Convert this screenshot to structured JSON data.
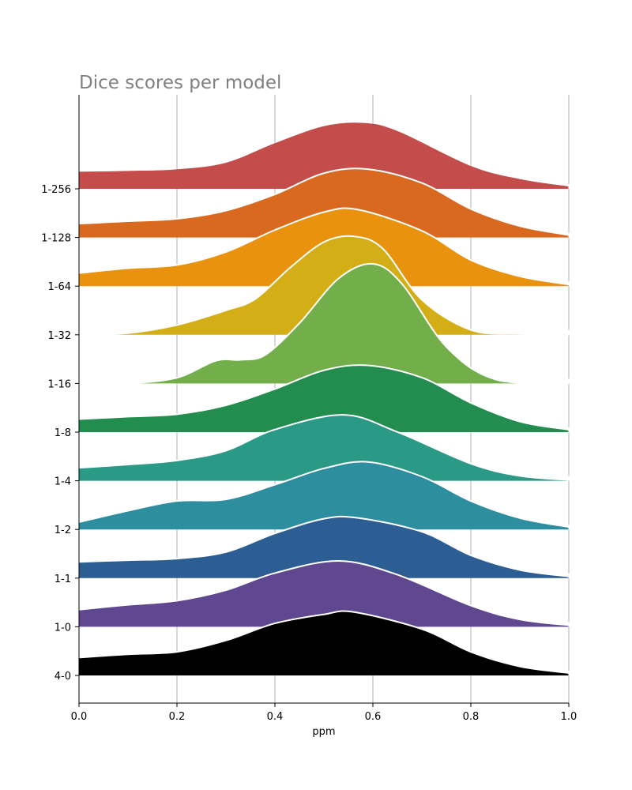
{
  "chart_data": {
    "type": "ridgeline",
    "title": "Dice scores per model",
    "xlabel": "ppm",
    "ylabel": "",
    "xlim": [
      0,
      1
    ],
    "x_ticks": [
      "0.0",
      "0.2",
      "0.4",
      "0.6",
      "0.8",
      "1.0"
    ],
    "x_tick_values": [
      0,
      0.2,
      0.4,
      0.6,
      0.8,
      1.0
    ],
    "grid": "vertical",
    "series": [
      {
        "name": "1-256",
        "color": "#c44c4b",
        "curve": [
          [
            0,
            0.2
          ],
          [
            0.1,
            0.21
          ],
          [
            0.2,
            0.23
          ],
          [
            0.3,
            0.31
          ],
          [
            0.4,
            0.55
          ],
          [
            0.5,
            0.76
          ],
          [
            0.58,
            0.8
          ],
          [
            0.65,
            0.7
          ],
          [
            0.8,
            0.27
          ],
          [
            0.9,
            0.11
          ],
          [
            1.0,
            0.02
          ]
        ]
      },
      {
        "name": "1-128",
        "color": "#d9691e",
        "curve": [
          [
            0,
            0.17
          ],
          [
            0.1,
            0.2
          ],
          [
            0.2,
            0.23
          ],
          [
            0.3,
            0.33
          ],
          [
            0.4,
            0.53
          ],
          [
            0.5,
            0.79
          ],
          [
            0.59,
            0.84
          ],
          [
            0.7,
            0.67
          ],
          [
            0.8,
            0.35
          ],
          [
            0.9,
            0.14
          ],
          [
            1.0,
            0.03
          ]
        ]
      },
      {
        "name": "1-64",
        "color": "#e8920e",
        "curve": [
          [
            0,
            0.16
          ],
          [
            0.1,
            0.22
          ],
          [
            0.2,
            0.26
          ],
          [
            0.3,
            0.42
          ],
          [
            0.4,
            0.69
          ],
          [
            0.5,
            0.91
          ],
          [
            0.57,
            0.94
          ],
          [
            0.7,
            0.68
          ],
          [
            0.8,
            0.32
          ],
          [
            0.9,
            0.12
          ],
          [
            1.0,
            0.02
          ]
        ]
      },
      {
        "name": "1-32",
        "color": "#d4ae17",
        "curve": [
          [
            0,
            0.0
          ],
          [
            0.1,
            0.02
          ],
          [
            0.2,
            0.12
          ],
          [
            0.3,
            0.3
          ],
          [
            0.36,
            0.44
          ],
          [
            0.43,
            0.82
          ],
          [
            0.5,
            1.14
          ],
          [
            0.56,
            1.21
          ],
          [
            0.62,
            1.06
          ],
          [
            0.7,
            0.43
          ],
          [
            0.8,
            0.06
          ],
          [
            0.9,
            0.01
          ],
          [
            1.0,
            0.0
          ]
        ]
      },
      {
        "name": "1-16",
        "color": "#72ae4a",
        "curve": [
          [
            0,
            0.0
          ],
          [
            0.1,
            0.0
          ],
          [
            0.2,
            0.07
          ],
          [
            0.28,
            0.28
          ],
          [
            0.33,
            0.29
          ],
          [
            0.38,
            0.35
          ],
          [
            0.45,
            0.74
          ],
          [
            0.53,
            1.29
          ],
          [
            0.6,
            1.47
          ],
          [
            0.66,
            1.22
          ],
          [
            0.75,
            0.45
          ],
          [
            0.85,
            0.05
          ],
          [
            1.0,
            0.0
          ]
        ]
      },
      {
        "name": "1-8",
        "color": "#238c4f",
        "curve": [
          [
            0,
            0.16
          ],
          [
            0.1,
            0.19
          ],
          [
            0.2,
            0.22
          ],
          [
            0.3,
            0.33
          ],
          [
            0.4,
            0.53
          ],
          [
            0.5,
            0.76
          ],
          [
            0.59,
            0.82
          ],
          [
            0.7,
            0.67
          ],
          [
            0.8,
            0.36
          ],
          [
            0.9,
            0.13
          ],
          [
            1.0,
            0.03
          ]
        ]
      },
      {
        "name": "1-4",
        "color": "#2a9a86",
        "curve": [
          [
            0,
            0.16
          ],
          [
            0.1,
            0.2
          ],
          [
            0.2,
            0.25
          ],
          [
            0.3,
            0.37
          ],
          [
            0.4,
            0.63
          ],
          [
            0.54,
            0.81
          ],
          [
            0.65,
            0.6
          ],
          [
            0.8,
            0.21
          ],
          [
            0.9,
            0.06
          ],
          [
            1.0,
            0.01
          ]
        ]
      },
      {
        "name": "1-2",
        "color": "#2d8ea0",
        "curve": [
          [
            0,
            0.09
          ],
          [
            0.1,
            0.23
          ],
          [
            0.2,
            0.35
          ],
          [
            0.3,
            0.37
          ],
          [
            0.4,
            0.55
          ],
          [
            0.5,
            0.75
          ],
          [
            0.59,
            0.83
          ],
          [
            0.7,
            0.65
          ],
          [
            0.8,
            0.35
          ],
          [
            0.9,
            0.14
          ],
          [
            1.0,
            0.03
          ]
        ]
      },
      {
        "name": "1-1",
        "color": "#2c5e93",
        "curve": [
          [
            0,
            0.2
          ],
          [
            0.1,
            0.22
          ],
          [
            0.2,
            0.24
          ],
          [
            0.3,
            0.32
          ],
          [
            0.4,
            0.55
          ],
          [
            0.5,
            0.73
          ],
          [
            0.57,
            0.74
          ],
          [
            0.7,
            0.57
          ],
          [
            0.8,
            0.28
          ],
          [
            0.9,
            0.1
          ],
          [
            1.0,
            0.02
          ]
        ]
      },
      {
        "name": "1-0",
        "color": "#5f4890",
        "curve": [
          [
            0,
            0.21
          ],
          [
            0.1,
            0.27
          ],
          [
            0.2,
            0.32
          ],
          [
            0.3,
            0.45
          ],
          [
            0.4,
            0.66
          ],
          [
            0.53,
            0.81
          ],
          [
            0.65,
            0.64
          ],
          [
            0.8,
            0.26
          ],
          [
            0.9,
            0.09
          ],
          [
            1.0,
            0.02
          ]
        ]
      },
      {
        "name": "4-0",
        "color": "#000000",
        "curve": [
          [
            0,
            0.22
          ],
          [
            0.1,
            0.26
          ],
          [
            0.2,
            0.29
          ],
          [
            0.3,
            0.43
          ],
          [
            0.4,
            0.64
          ],
          [
            0.5,
            0.75
          ],
          [
            0.56,
            0.78
          ],
          [
            0.7,
            0.57
          ],
          [
            0.8,
            0.29
          ],
          [
            0.9,
            0.11
          ],
          [
            1.0,
            0.03
          ]
        ]
      }
    ]
  }
}
